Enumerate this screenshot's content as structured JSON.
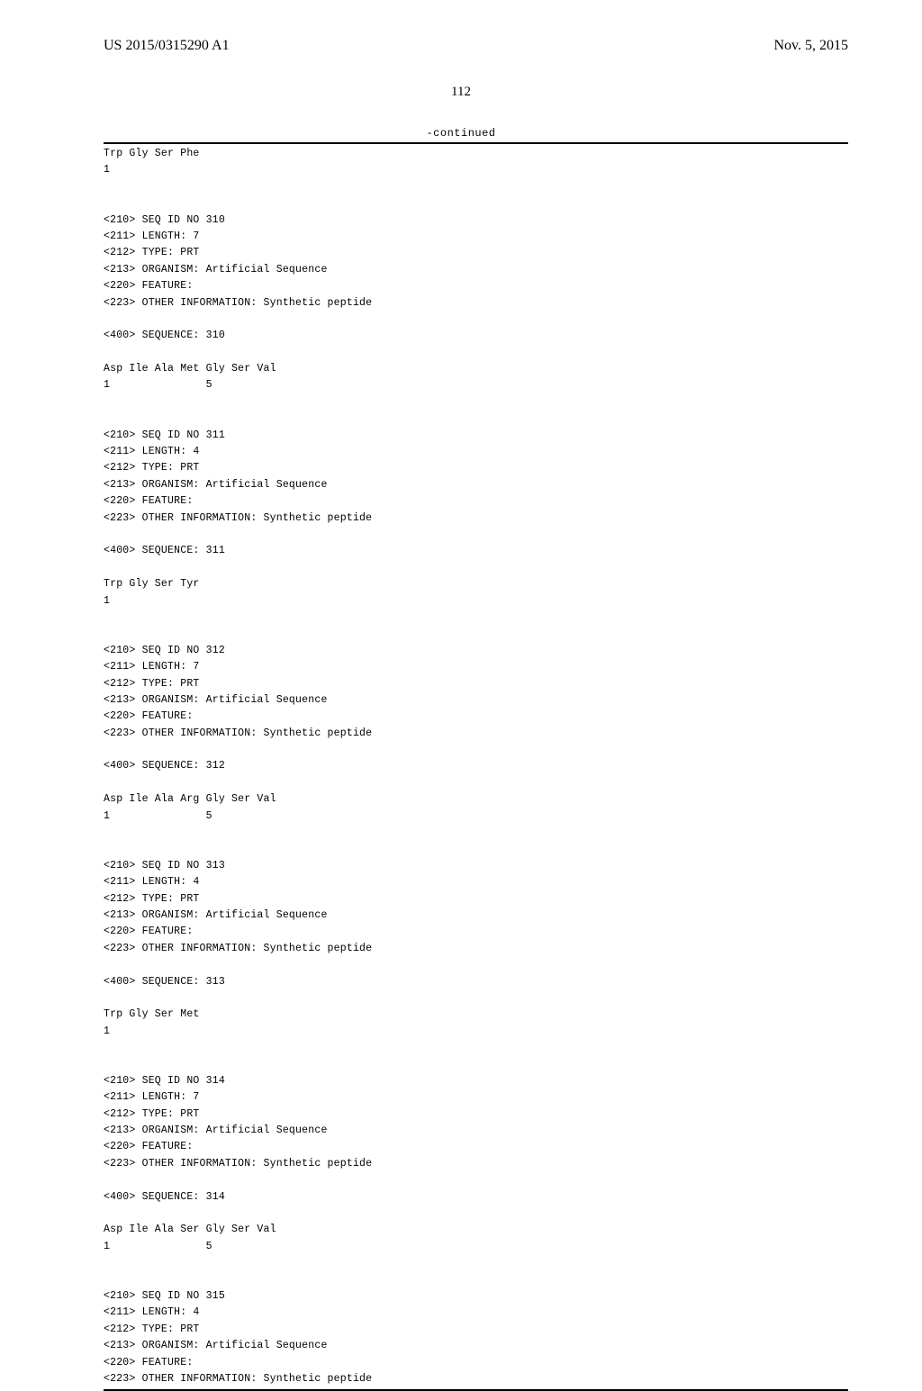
{
  "header": {
    "publication_number": "US 2015/0315290 A1",
    "date": "Nov. 5, 2015"
  },
  "page_number": "112",
  "continued_label": "-continued",
  "entries": [
    {
      "lines": [
        "Trp Gly Ser Phe",
        "1"
      ]
    },
    {
      "lines": [
        "<210> SEQ ID NO 310",
        "<211> LENGTH: 7",
        "<212> TYPE: PRT",
        "<213> ORGANISM: Artificial Sequence",
        "<220> FEATURE:",
        "<223> OTHER INFORMATION: Synthetic peptide",
        "",
        "<400> SEQUENCE: 310",
        "",
        "Asp Ile Ala Met Gly Ser Val",
        "1               5"
      ]
    },
    {
      "lines": [
        "<210> SEQ ID NO 311",
        "<211> LENGTH: 4",
        "<212> TYPE: PRT",
        "<213> ORGANISM: Artificial Sequence",
        "<220> FEATURE:",
        "<223> OTHER INFORMATION: Synthetic peptide",
        "",
        "<400> SEQUENCE: 311",
        "",
        "Trp Gly Ser Tyr",
        "1"
      ]
    },
    {
      "lines": [
        "<210> SEQ ID NO 312",
        "<211> LENGTH: 7",
        "<212> TYPE: PRT",
        "<213> ORGANISM: Artificial Sequence",
        "<220> FEATURE:",
        "<223> OTHER INFORMATION: Synthetic peptide",
        "",
        "<400> SEQUENCE: 312",
        "",
        "Asp Ile Ala Arg Gly Ser Val",
        "1               5"
      ]
    },
    {
      "lines": [
        "<210> SEQ ID NO 313",
        "<211> LENGTH: 4",
        "<212> TYPE: PRT",
        "<213> ORGANISM: Artificial Sequence",
        "<220> FEATURE:",
        "<223> OTHER INFORMATION: Synthetic peptide",
        "",
        "<400> SEQUENCE: 313",
        "",
        "Trp Gly Ser Met",
        "1"
      ]
    },
    {
      "lines": [
        "<210> SEQ ID NO 314",
        "<211> LENGTH: 7",
        "<212> TYPE: PRT",
        "<213> ORGANISM: Artificial Sequence",
        "<220> FEATURE:",
        "<223> OTHER INFORMATION: Synthetic peptide",
        "",
        "<400> SEQUENCE: 314",
        "",
        "Asp Ile Ala Ser Gly Ser Val",
        "1               5"
      ]
    },
    {
      "lines": [
        "<210> SEQ ID NO 315",
        "<211> LENGTH: 4",
        "<212> TYPE: PRT",
        "<213> ORGANISM: Artificial Sequence",
        "<220> FEATURE:",
        "<223> OTHER INFORMATION: Synthetic peptide"
      ]
    }
  ]
}
